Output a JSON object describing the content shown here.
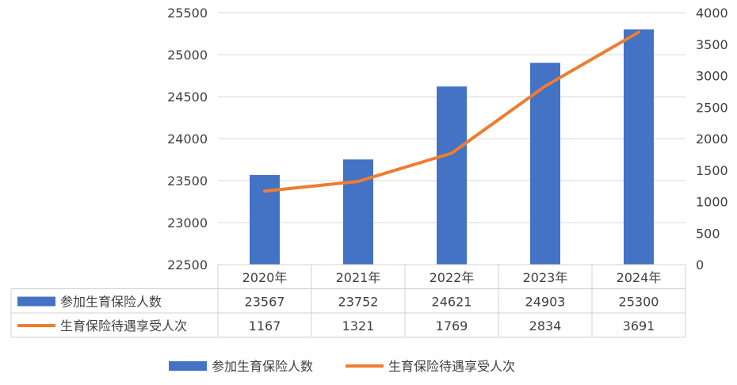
{
  "chart_data": {
    "type": "bar",
    "categories": [
      "2020年",
      "2021年",
      "2022年",
      "2023年",
      "2024年"
    ],
    "series": [
      {
        "name": "参加生育保险人数",
        "type": "bar",
        "axis": "left",
        "color": "#4472c4",
        "values": [
          23567,
          23752,
          24621,
          24903,
          25300
        ]
      },
      {
        "name": "生育保险待遇享受人次",
        "type": "line",
        "axis": "right",
        "color": "#ed7d31",
        "values": [
          1167,
          1321,
          1769,
          2834,
          3691
        ]
      }
    ],
    "ylim": [
      22500,
      25500
    ],
    "yticks": [
      22500,
      23000,
      23500,
      24000,
      24500,
      25000,
      25500
    ],
    "y2lim": [
      0,
      4000
    ],
    "y2ticks": [
      0,
      500,
      1000,
      1500,
      2000,
      2500,
      3000,
      3500,
      4000
    ],
    "grid": true,
    "data_table": true,
    "legend_position": "bottom"
  }
}
